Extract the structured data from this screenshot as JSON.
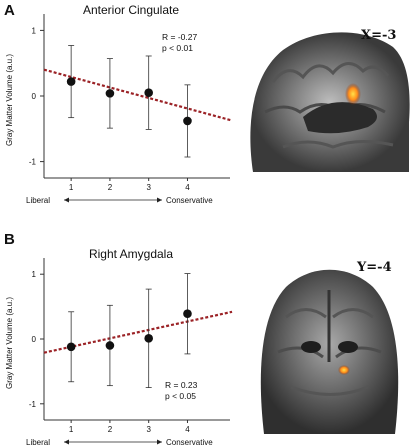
{
  "panels": [
    {
      "letter": "A",
      "coordinate_label": "X=-3"
    },
    {
      "letter": "B",
      "coordinate_label": "Y=-4"
    }
  ],
  "colors": {
    "point": "#111111",
    "trendline": "#9b2226",
    "blob": "#ff8c1a"
  },
  "chart_data": [
    {
      "type": "scatter",
      "title": "Anterior Cingulate",
      "ylabel": "Gray Matter Volume (a.u.)",
      "xlabel_left": "Liberal",
      "xlabel_right": "Conservative",
      "x": [
        1,
        2,
        3,
        4
      ],
      "y": [
        0.22,
        0.04,
        0.05,
        -0.38
      ],
      "y_err": [
        0.55,
        0.53,
        0.56,
        0.55
      ],
      "trendline": {
        "slope": -0.16,
        "intercept": 0.45
      },
      "xticks": [
        "1",
        "2",
        "3",
        "4"
      ],
      "yticks": [
        -1,
        0,
        1
      ],
      "ylim": [
        -1.25,
        1.25
      ],
      "xlim": [
        0.3,
        5.2
      ],
      "annotation": [
        "R = -0.27",
        "p < 0.01"
      ],
      "grid": false
    },
    {
      "type": "scatter",
      "title": "Right Amygdala",
      "ylabel": "Gray Matter Volume (a.u.)",
      "xlabel_left": "Liberal",
      "xlabel_right": "Conservative",
      "x": [
        1,
        2,
        3,
        4
      ],
      "y": [
        -0.12,
        -0.1,
        0.01,
        0.39
      ],
      "y_err": [
        0.54,
        0.62,
        0.76,
        0.62
      ],
      "trendline": {
        "slope": 0.13,
        "intercept": -0.25
      },
      "xticks": [
        "1",
        "2",
        "3",
        "4"
      ],
      "yticks": [
        -1,
        0,
        1
      ],
      "ylim": [
        -1.25,
        1.25
      ],
      "xlim": [
        0.3,
        5.2
      ],
      "annotation": [
        "R = 0.23",
        "p < 0.05"
      ],
      "grid": false
    }
  ]
}
